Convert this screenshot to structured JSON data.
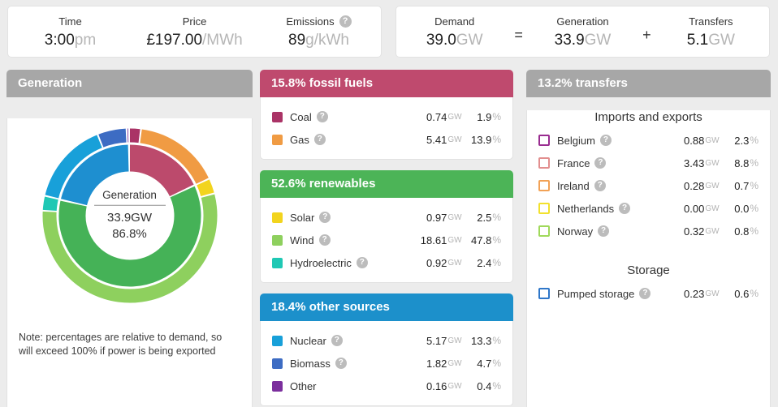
{
  "icons": {
    "help": "?"
  },
  "units": {
    "gw": "GW",
    "pct": "%"
  },
  "top": {
    "stats": [
      {
        "label": "Time",
        "value": "3:00",
        "unit": "pm",
        "help": false
      },
      {
        "label": "Price",
        "value": "£197.00",
        "unit": "/MWh",
        "help": false
      },
      {
        "label": "Emissions",
        "value": "89",
        "unit": "g/kWh",
        "help": true
      }
    ],
    "equation": {
      "equals": "=",
      "plus": "+",
      "terms": [
        {
          "label": "Demand",
          "value": "39.0",
          "unit": "GW"
        },
        {
          "label": "Generation",
          "value": "33.9",
          "unit": "GW"
        },
        {
          "label": "Transfers",
          "value": "5.1",
          "unit": "GW"
        }
      ]
    }
  },
  "generation": {
    "header": "Generation",
    "center_title": "Generation",
    "center_value": "33.9GW",
    "center_pct": "86.8%",
    "note": "Note: percentages are relative to demand, so will exceed 100% if power is being exported"
  },
  "sections": [
    {
      "title": "15.8% fossil fuels",
      "color": "#bf4a6e",
      "rows": [
        {
          "label": "Coal",
          "help": true,
          "value": "0.74",
          "pct": "1.9",
          "color": "#aa3366"
        },
        {
          "label": "Gas",
          "help": true,
          "value": "5.41",
          "pct": "13.9",
          "color": "#f09b43"
        }
      ]
    },
    {
      "title": "52.6% renewables",
      "color": "#4cb457",
      "rows": [
        {
          "label": "Solar",
          "help": true,
          "value": "0.97",
          "pct": "2.5",
          "color": "#f2d41e"
        },
        {
          "label": "Wind",
          "help": true,
          "value": "18.61",
          "pct": "47.8",
          "color": "#8ed05e"
        },
        {
          "label": "Hydroelectric",
          "help": true,
          "value": "0.92",
          "pct": "2.4",
          "color": "#1fc8b4"
        }
      ]
    },
    {
      "title": "18.4% other sources",
      "color": "#1c90cb",
      "rows": [
        {
          "label": "Nuclear",
          "help": true,
          "value": "5.17",
          "pct": "13.3",
          "color": "#18a0d9"
        },
        {
          "label": "Biomass",
          "help": true,
          "value": "1.82",
          "pct": "4.7",
          "color": "#3d6cc3"
        },
        {
          "label": "Other",
          "help": false,
          "value": "0.16",
          "pct": "0.4",
          "color": "#7b2f9d"
        }
      ]
    }
  ],
  "transfers": {
    "title": "13.2% transfers",
    "color": "#a7a7a7",
    "groups": [
      {
        "heading": "Imports and exports",
        "rows": [
          {
            "label": "Belgium",
            "help": true,
            "value": "0.88",
            "pct": "2.3",
            "color": "#992d90"
          },
          {
            "label": "France",
            "help": true,
            "value": "3.43",
            "pct": "8.8",
            "color": "#e28f8f"
          },
          {
            "label": "Ireland",
            "help": true,
            "value": "0.28",
            "pct": "0.7",
            "color": "#f2a256"
          },
          {
            "label": "Netherlands",
            "help": true,
            "value": "0.00",
            "pct": "0.0",
            "color": "#f2e12e"
          },
          {
            "label": "Norway",
            "help": true,
            "value": "0.32",
            "pct": "0.8",
            "color": "#a0d95b"
          }
        ]
      },
      {
        "heading": "Storage",
        "rows": [
          {
            "label": "Pumped storage",
            "help": true,
            "value": "0.23",
            "pct": "0.6",
            "color": "#2f77c9"
          }
        ]
      }
    ]
  },
  "chart_data": {
    "type": "donut",
    "title": "Generation",
    "center_value_gw": 33.9,
    "center_percent_of_demand": 86.8,
    "inner_ring": [
      {
        "name": "fossil fuels",
        "pct": 15.8,
        "color": "#bc4a6c"
      },
      {
        "name": "renewables",
        "pct": 52.6,
        "color": "#45b257"
      },
      {
        "name": "other sources",
        "pct": 18.4,
        "color": "#1e8fd0"
      }
    ],
    "outer_ring": [
      {
        "name": "Coal",
        "pct": 1.9,
        "color": "#aa3366"
      },
      {
        "name": "Gas",
        "pct": 13.9,
        "color": "#f09b43"
      },
      {
        "name": "Solar",
        "pct": 2.5,
        "color": "#f2d41e"
      },
      {
        "name": "Wind",
        "pct": 47.8,
        "color": "#8ed05e"
      },
      {
        "name": "Hydroelectric",
        "pct": 2.4,
        "color": "#1fc8b4"
      },
      {
        "name": "Nuclear",
        "pct": 13.3,
        "color": "#18a0d9"
      },
      {
        "name": "Biomass",
        "pct": 4.7,
        "color": "#3d6cc3"
      },
      {
        "name": "Other",
        "pct": 0.4,
        "color": "#7b2f9d"
      }
    ]
  }
}
